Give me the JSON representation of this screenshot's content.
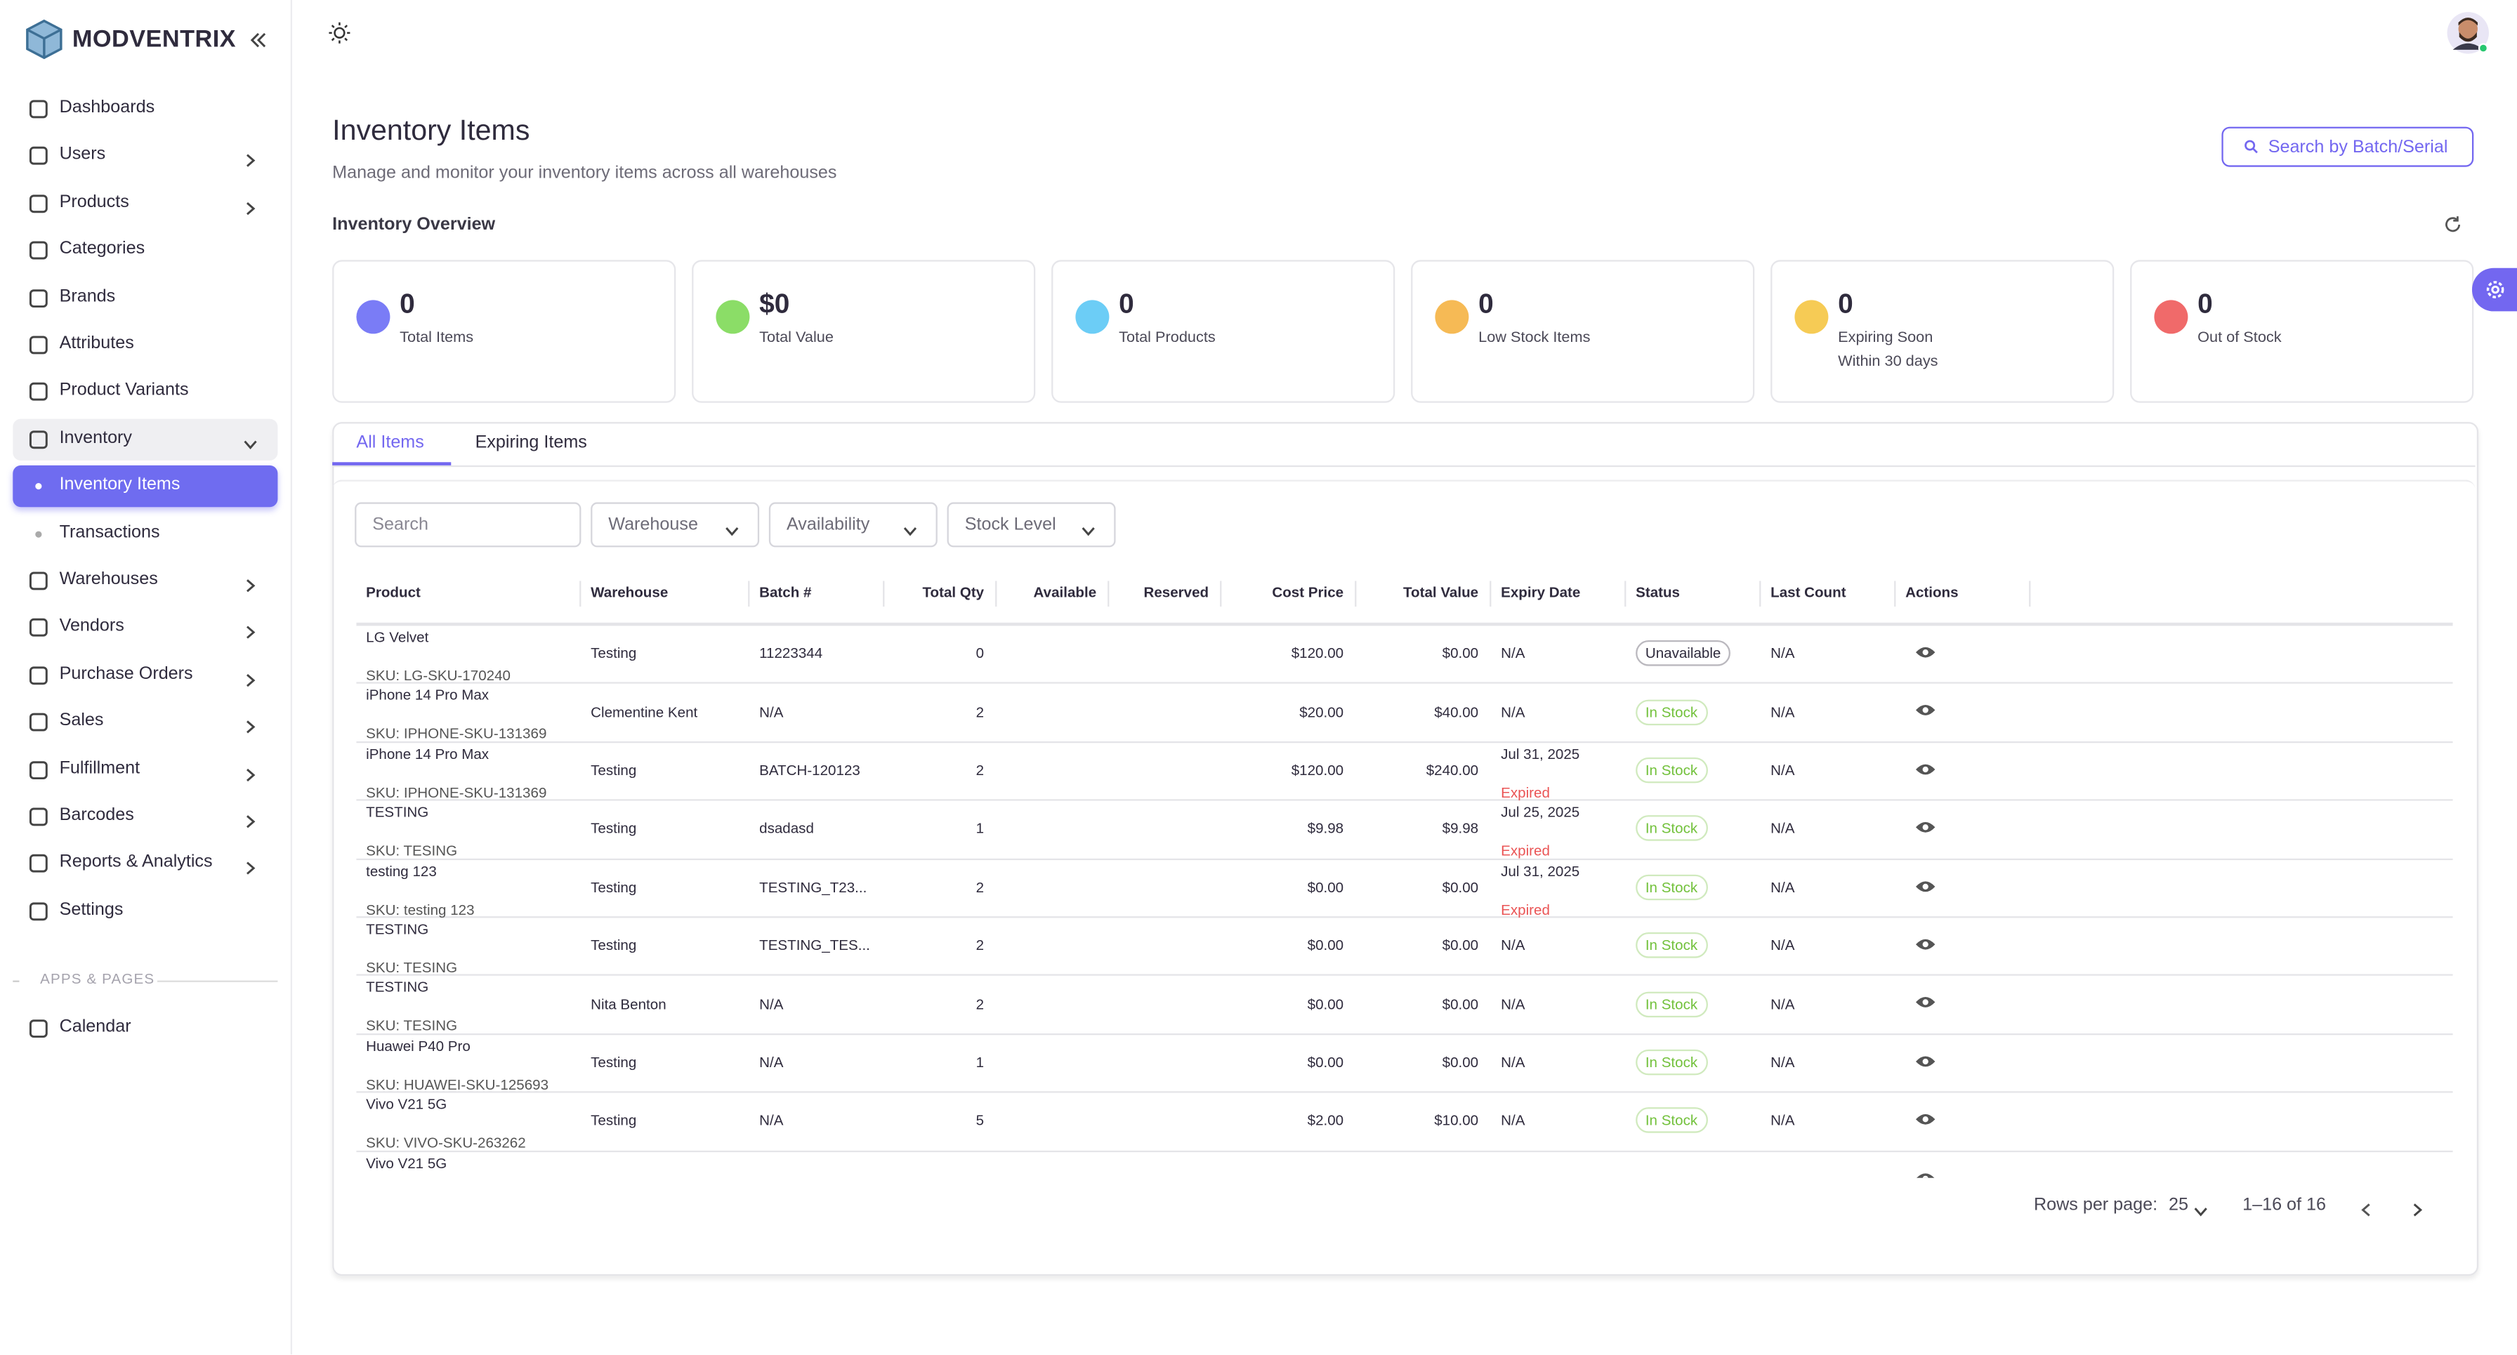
{
  "sidebar": {
    "brand": "MODVENTRIX",
    "nav": [
      {
        "label": "Dashboards"
      },
      {
        "label": "Users",
        "expandable": true
      },
      {
        "label": "Products",
        "expandable": true
      },
      {
        "label": "Categories"
      },
      {
        "label": "Brands"
      },
      {
        "label": "Attributes"
      },
      {
        "label": "Product Variants"
      },
      {
        "label": "Inventory",
        "open": true
      },
      {
        "label": "Inventory Items",
        "sub": true,
        "active": true
      },
      {
        "label": "Transactions",
        "sub": true
      },
      {
        "label": "Warehouses",
        "expandable": true
      },
      {
        "label": "Vendors",
        "expandable": true
      },
      {
        "label": "Purchase Orders",
        "expandable": true
      },
      {
        "label": "Sales",
        "expandable": true
      },
      {
        "label": "Fulfillment",
        "expandable": true
      },
      {
        "label": "Barcodes",
        "expandable": true
      },
      {
        "label": "Reports & Analytics",
        "expandable": true
      },
      {
        "label": "Settings"
      }
    ],
    "section": "APPS & PAGES",
    "apps": [
      {
        "label": "Calendar"
      }
    ]
  },
  "header": {
    "title": "Inventory Items",
    "subtitle": "Manage and monitor your inventory items across all warehouses",
    "search_button": "Search by Batch/Serial"
  },
  "overview": {
    "title": "Inventory Overview",
    "cards": [
      {
        "value": 0,
        "label": "Total Items",
        "color": "#6b6ef5"
      },
      {
        "value": "$0",
        "label": "Total Value",
        "color": "#7ed957"
      },
      {
        "value": 0,
        "label": "Total Products",
        "color": "#5cc8f5"
      },
      {
        "value": 0,
        "label": "Low Stock Items",
        "color": "#f5b342"
      },
      {
        "value": 0,
        "label": "Expiring Soon",
        "sublabel": "Within 30 days",
        "color": "#f5c542"
      },
      {
        "value": 0,
        "label": "Out of Stock",
        "color": "#ee5a5a"
      }
    ]
  },
  "tabs": [
    "All Items",
    "Expiring Items"
  ],
  "filters": {
    "search": "Search",
    "selects": [
      "Warehouse",
      "Availability",
      "Stock Level"
    ]
  },
  "table": {
    "columns": [
      "Product",
      "Warehouse",
      "Batch #",
      "Total Qty",
      "Available",
      "Reserved",
      "Cost Price",
      "Total Value",
      "Expiry Date",
      "Status",
      "Last Count",
      "Actions"
    ],
    "rows": [
      {
        "product": "LG Velvet",
        "sku": "SKU: LG-SKU-170240",
        "warehouse": "Testing",
        "batch": "11223344",
        "total_qty": 0,
        "cost_price": "$120.00",
        "total_value": "$0.00",
        "expiry": "N/A",
        "status": "Unavailable",
        "status_color": "#2f2b3d",
        "last_count": "N/A"
      },
      {
        "product": "iPhone 14 Pro Max",
        "sku": "SKU: IPHONE-SKU-131369",
        "warehouse": "Clementine Kent",
        "batch": "N/A",
        "total_qty": 2,
        "cost_price": "$20.00",
        "total_value": "$40.00",
        "expiry": "N/A",
        "status": "In Stock",
        "status_color": "#72c13b",
        "last_count": "N/A"
      },
      {
        "product": "iPhone 14 Pro Max",
        "sku": "SKU: IPHONE-SKU-131369",
        "warehouse": "Testing",
        "batch": "BATCH-120123",
        "total_qty": 2,
        "cost_price": "$120.00",
        "total_value": "$240.00",
        "expiry": "Jul 31, 2025",
        "expiry_note": "Expired",
        "status": "In Stock",
        "status_color": "#72c13b",
        "last_count": "N/A"
      },
      {
        "product": "TESTING",
        "sku": "SKU: TESING",
        "warehouse": "Testing",
        "batch": "dsadasd",
        "total_qty": 1,
        "cost_price": "$9.98",
        "total_value": "$9.98",
        "expiry": "Jul 25, 2025",
        "expiry_note": "Expired",
        "status": "In Stock",
        "status_color": "#72c13b",
        "last_count": "N/A"
      },
      {
        "product": "testing 123",
        "sku": "SKU: testing 123",
        "warehouse": "Testing",
        "batch": "TESTING_T23...",
        "total_qty": 2,
        "cost_price": "$0.00",
        "total_value": "$0.00",
        "expiry": "Jul 31, 2025",
        "expiry_note": "Expired",
        "status": "In Stock",
        "status_color": "#72c13b",
        "last_count": "N/A"
      },
      {
        "product": "TESTING",
        "sku": "SKU: TESING",
        "warehouse": "Testing",
        "batch": "TESTING_TES...",
        "total_qty": 2,
        "cost_price": "$0.00",
        "total_value": "$0.00",
        "expiry": "N/A",
        "status": "In Stock",
        "status_color": "#72c13b",
        "last_count": "N/A"
      },
      {
        "product": "TESTING",
        "sku": "SKU: TESING",
        "warehouse": "Nita Benton",
        "batch": "N/A",
        "total_qty": 2,
        "cost_price": "$0.00",
        "total_value": "$0.00",
        "expiry": "N/A",
        "status": "In Stock",
        "status_color": "#72c13b",
        "last_count": "N/A"
      },
      {
        "product": "Huawei P40 Pro",
        "sku": "SKU: HUAWEI-SKU-125693",
        "warehouse": "Testing",
        "batch": "N/A",
        "total_qty": 1,
        "cost_price": "$0.00",
        "total_value": "$0.00",
        "expiry": "N/A",
        "status": "In Stock",
        "status_color": "#72c13b",
        "last_count": "N/A"
      },
      {
        "product": "Vivo V21 5G",
        "sku": "SKU: VIVO-SKU-263262",
        "warehouse": "Testing",
        "batch": "N/A",
        "total_qty": 5,
        "cost_price": "$2.00",
        "total_value": "$10.00",
        "expiry": "N/A",
        "status": "In Stock",
        "status_color": "#72c13b",
        "last_count": "N/A"
      },
      {
        "product": "Vivo V21 5G"
      }
    ]
  },
  "pagination": {
    "rows_per_page_label": "Rows per page:",
    "rows_per_page": 25,
    "range": "1–16 of 16"
  }
}
